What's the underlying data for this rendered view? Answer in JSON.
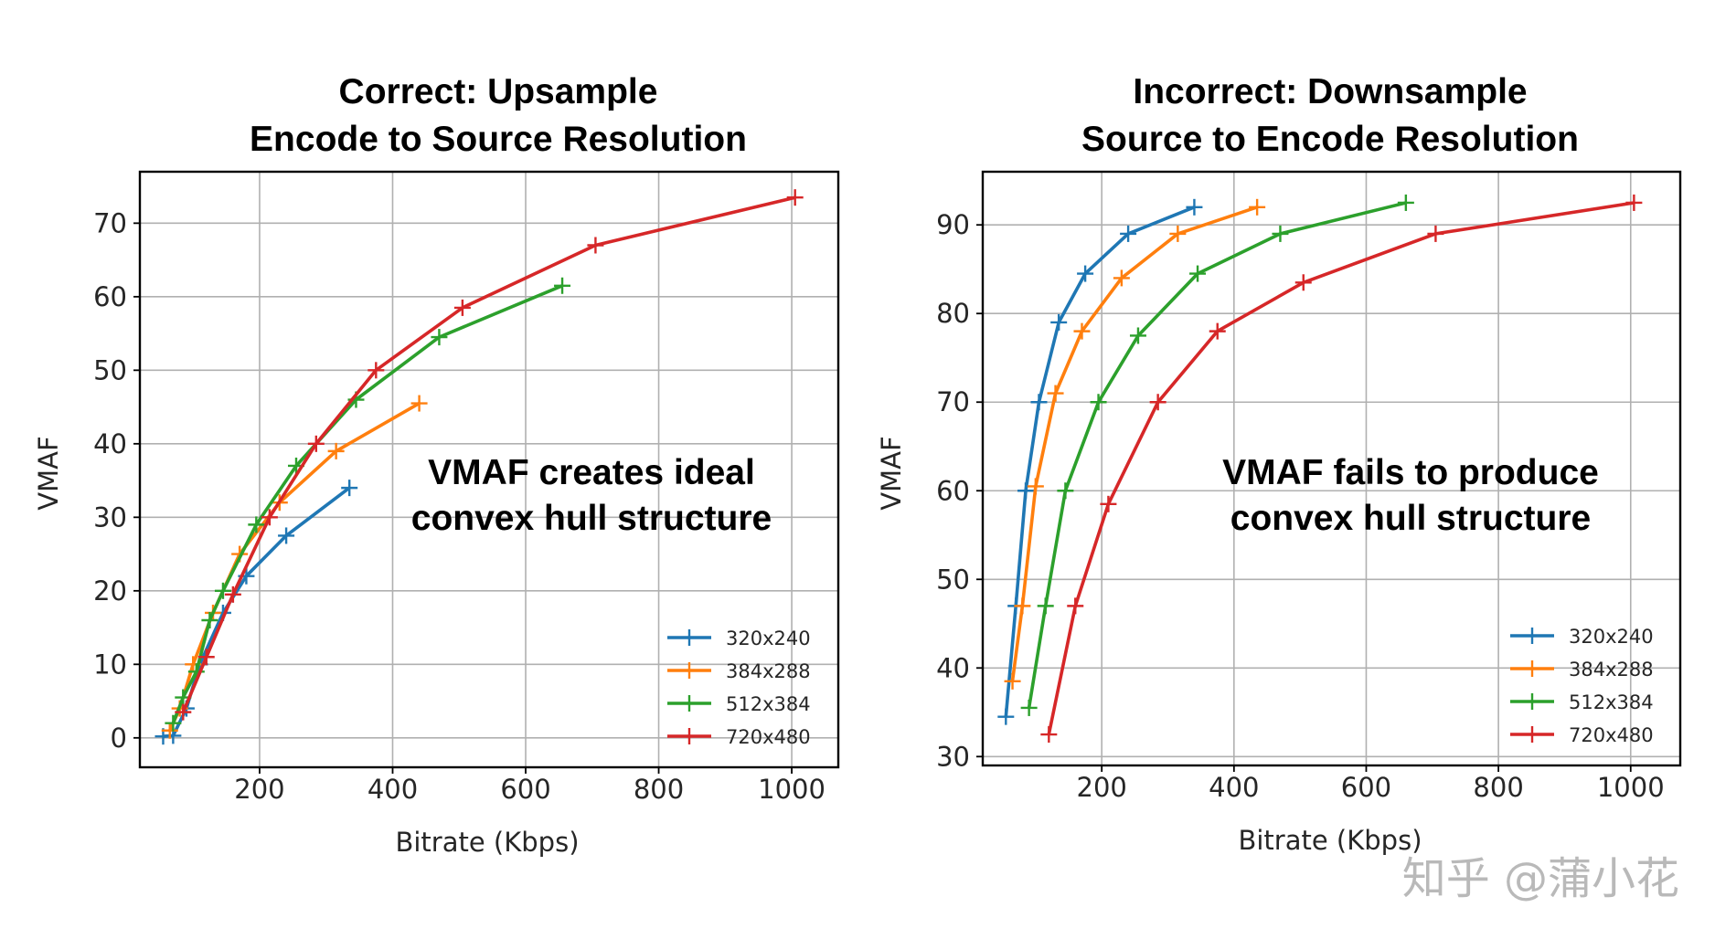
{
  "watermark": "知乎 @蒲小花",
  "chart_data": [
    {
      "type": "line",
      "title_line1": "Correct: Upsample",
      "title_line2": "Encode to Source Resolution",
      "xlabel": "Bitrate (Kbps)",
      "ylabel": "VMAF",
      "xlim": [
        20,
        1070
      ],
      "ylim": [
        -4,
        77
      ],
      "xticks": [
        200,
        400,
        600,
        800,
        1000
      ],
      "yticks": [
        0,
        10,
        20,
        30,
        40,
        50,
        60,
        70
      ],
      "grid": true,
      "annotation_line1": "VMAF creates ideal",
      "annotation_line2": "convex hull structure",
      "legend_position": "lower-right",
      "series": [
        {
          "name": "320x240",
          "color": "#1f77b4",
          "points": [
            [
              55,
              0.2
            ],
            [
              70,
              0.3
            ],
            [
              90,
              4
            ],
            [
              110,
              10
            ],
            [
              145,
              17
            ],
            [
              180,
              22
            ],
            [
              240,
              27.5
            ],
            [
              335,
              34
            ]
          ]
        },
        {
          "name": "384x288",
          "color": "#ff7f0e",
          "points": [
            [
              65,
              1
            ],
            [
              80,
              4
            ],
            [
              100,
              10
            ],
            [
              130,
              17
            ],
            [
              170,
              25
            ],
            [
              230,
              32
            ],
            [
              315,
              39
            ],
            [
              440,
              45.5
            ]
          ]
        },
        {
          "name": "512x384",
          "color": "#2ca02c",
          "points": [
            [
              70,
              2
            ],
            [
              85,
              5.5
            ],
            [
              105,
              9
            ],
            [
              125,
              16
            ],
            [
              145,
              20
            ],
            [
              195,
              29
            ],
            [
              255,
              37
            ],
            [
              345,
              46
            ],
            [
              470,
              54.5
            ],
            [
              655,
              61.5
            ]
          ]
        },
        {
          "name": "720x480",
          "color": "#d62728",
          "points": [
            [
              85,
              3.5
            ],
            [
              120,
              11
            ],
            [
              160,
              19.5
            ],
            [
              215,
              30
            ],
            [
              285,
              40
            ],
            [
              375,
              50
            ],
            [
              505,
              58.5
            ],
            [
              705,
              67
            ],
            [
              1005,
              73.5
            ]
          ]
        }
      ]
    },
    {
      "type": "line",
      "title_line1": "Incorrect: Downsample",
      "title_line2": "Source to Encode Resolution",
      "xlabel": "Bitrate (Kbps)",
      "ylabel": "VMAF",
      "xlim": [
        20,
        1075
      ],
      "ylim": [
        29,
        96
      ],
      "xticks": [
        200,
        400,
        600,
        800,
        1000
      ],
      "yticks": [
        30,
        40,
        50,
        60,
        70,
        80,
        90
      ],
      "grid": true,
      "annotation_line1": "VMAF fails to produce",
      "annotation_line2": "convex hull structure",
      "legend_position": "lower-right",
      "series": [
        {
          "name": "320x240",
          "color": "#1f77b4",
          "points": [
            [
              55,
              34.5
            ],
            [
              70,
              47
            ],
            [
              85,
              60
            ],
            [
              105,
              70
            ],
            [
              135,
              79
            ],
            [
              175,
              84.5
            ],
            [
              240,
              89
            ],
            [
              340,
              92
            ]
          ]
        },
        {
          "name": "384x288",
          "color": "#ff7f0e",
          "points": [
            [
              65,
              38.5
            ],
            [
              80,
              47
            ],
            [
              100,
              60.5
            ],
            [
              130,
              71
            ],
            [
              170,
              78
            ],
            [
              230,
              84
            ],
            [
              315,
              89
            ],
            [
              435,
              92
            ]
          ]
        },
        {
          "name": "512x384",
          "color": "#2ca02c",
          "points": [
            [
              90,
              35.5
            ],
            [
              115,
              47
            ],
            [
              145,
              60
            ],
            [
              195,
              70
            ],
            [
              255,
              77.5
            ],
            [
              345,
              84.5
            ],
            [
              470,
              89
            ],
            [
              660,
              92.5
            ]
          ]
        },
        {
          "name": "720x480",
          "color": "#d62728",
          "points": [
            [
              120,
              32.5
            ],
            [
              160,
              47
            ],
            [
              210,
              58.5
            ],
            [
              285,
              70
            ],
            [
              375,
              78
            ],
            [
              505,
              83.5
            ],
            [
              705,
              89
            ],
            [
              1005,
              92.5
            ]
          ]
        }
      ]
    }
  ]
}
